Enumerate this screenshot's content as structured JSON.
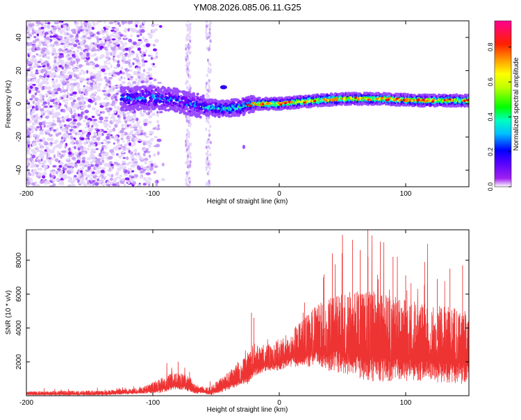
{
  "title": "YM08.2026.085.06.11.G25",
  "chart_data": [
    {
      "type": "heatmap",
      "title": "YM08.2026.085.06.11.G25",
      "xlabel": "Height of straight line (km)",
      "ylabel": "Frequency (Hz)",
      "xlim": [
        -200,
        150
      ],
      "ylim": [
        -50,
        50
      ],
      "xticks": [
        -200,
        -100,
        0,
        100
      ],
      "xtick_labels": [
        "-200",
        "-100",
        "0",
        "100"
      ],
      "yticks": [
        -40,
        -20,
        0,
        20,
        40
      ],
      "ytick_labels": [
        "-40",
        "-20",
        "0",
        "20",
        "40"
      ],
      "colorbar": {
        "label": "Normalized spectral amplitude",
        "range": [
          0,
          0.95
        ],
        "ticks": [
          0,
          0.2,
          0.4,
          0.6,
          0.8
        ],
        "tick_labels": [
          "0.0",
          "0.2",
          "0.4",
          "0.6",
          "0.8"
        ],
        "colors": [
          "#ffffff",
          "#e8d8f8",
          "#9b59ff",
          "#6a00ff",
          "#0000ff",
          "#00ffff",
          "#00ff00",
          "#ffff00",
          "#ffa500",
          "#ff0000",
          "#ff00aa"
        ]
      },
      "ridge": {
        "description_values": [
          {
            "x": -120,
            "y": 3
          },
          {
            "x": -100,
            "y": 4
          },
          {
            "x": -80,
            "y": 2
          },
          {
            "x": -60,
            "y": -2
          },
          {
            "x": -45,
            "y": -3
          },
          {
            "x": -30,
            "y": -2
          },
          {
            "x": -20,
            "y": 0
          },
          {
            "x": 0,
            "y": 0
          },
          {
            "x": 30,
            "y": 2
          },
          {
            "x": 50,
            "y": 3
          },
          {
            "x": 80,
            "y": 3
          },
          {
            "x": 110,
            "y": 2
          },
          {
            "x": 150,
            "y": 2
          }
        ]
      }
    },
    {
      "type": "line",
      "xlabel": "Height of straight line (km)",
      "ylabel": "SNR (10 * v/v)",
      "xlim": [
        -200,
        150
      ],
      "ylim": [
        0,
        9800
      ],
      "xticks": [
        -200,
        -100,
        0,
        100
      ],
      "xtick_labels": [
        "-200",
        "-100",
        "0",
        "100"
      ],
      "yticks": [
        2000,
        4000,
        6000,
        8000
      ],
      "ytick_labels": [
        "2000",
        "4000",
        "6000",
        "8000"
      ],
      "color": "#ee3333",
      "envelope": [
        {
          "x": -200,
          "y": 150
        },
        {
          "x": -140,
          "y": 180
        },
        {
          "x": -110,
          "y": 300
        },
        {
          "x": -95,
          "y": 600
        },
        {
          "x": -85,
          "y": 900
        },
        {
          "x": -75,
          "y": 850
        },
        {
          "x": -65,
          "y": 400
        },
        {
          "x": -55,
          "y": 300
        },
        {
          "x": -45,
          "y": 700
        },
        {
          "x": -35,
          "y": 1200
        },
        {
          "x": -25,
          "y": 1600
        },
        {
          "x": -20,
          "y": 2200
        },
        {
          "x": -10,
          "y": 2300
        },
        {
          "x": 0,
          "y": 2500
        },
        {
          "x": 10,
          "y": 2900
        },
        {
          "x": 20,
          "y": 3300
        },
        {
          "x": 30,
          "y": 3700
        },
        {
          "x": 45,
          "y": 3900
        },
        {
          "x": 60,
          "y": 3900
        },
        {
          "x": 80,
          "y": 3700
        },
        {
          "x": 100,
          "y": 3500
        },
        {
          "x": 120,
          "y": 3300
        },
        {
          "x": 150,
          "y": 3100
        }
      ],
      "noise": [
        {
          "x": -200,
          "y": 100
        },
        {
          "x": -110,
          "y": 150
        },
        {
          "x": -90,
          "y": 450
        },
        {
          "x": -75,
          "y": 450
        },
        {
          "x": -60,
          "y": 150
        },
        {
          "x": -40,
          "y": 500
        },
        {
          "x": -22,
          "y": 900
        },
        {
          "x": -10,
          "y": 700
        },
        {
          "x": 10,
          "y": 1000
        },
        {
          "x": 40,
          "y": 2000
        },
        {
          "x": 70,
          "y": 2500
        },
        {
          "x": 100,
          "y": 2200
        },
        {
          "x": 150,
          "y": 2000
        }
      ],
      "peaks": [
        {
          "x": -80,
          "y": 2000
        },
        {
          "x": -22,
          "y": 4900
        },
        {
          "x": -20,
          "y": 4600
        },
        {
          "x": 20,
          "y": 5500
        },
        {
          "x": 35,
          "y": 7000
        },
        {
          "x": 42,
          "y": 8400
        },
        {
          "x": 50,
          "y": 9500
        },
        {
          "x": 58,
          "y": 9200
        },
        {
          "x": 64,
          "y": 8600
        },
        {
          "x": 70,
          "y": 9800
        },
        {
          "x": 80,
          "y": 9100
        },
        {
          "x": 90,
          "y": 8200
        },
        {
          "x": 100,
          "y": 7100
        },
        {
          "x": 115,
          "y": 7900
        },
        {
          "x": 125,
          "y": 6900
        },
        {
          "x": 135,
          "y": 7500
        },
        {
          "x": 145,
          "y": 7700
        }
      ]
    }
  ]
}
